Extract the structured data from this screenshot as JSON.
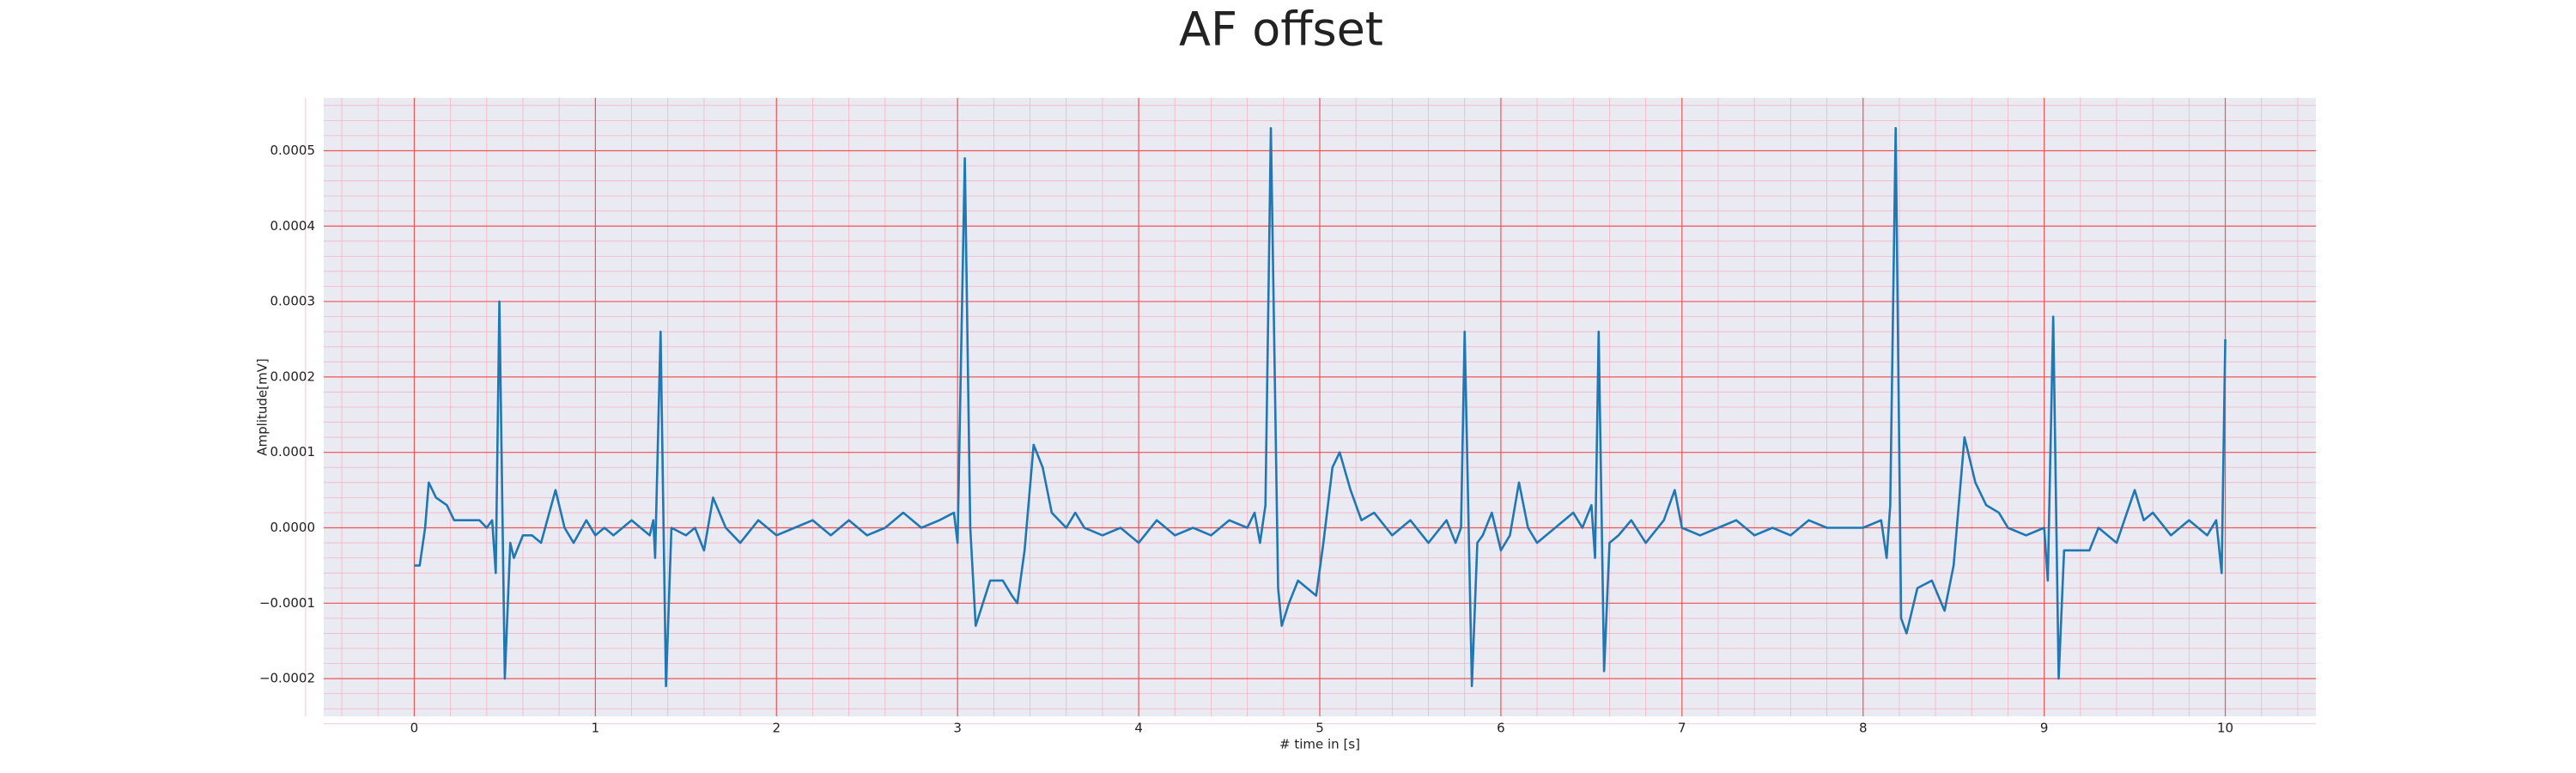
{
  "chart_data": {
    "type": "line",
    "title": "AF offset",
    "xlabel": "# time in [s]",
    "ylabel": "Amplitude[mV]",
    "color": "#1f77b4",
    "grid": true,
    "minor_grid": true,
    "xlim": [
      -0.5,
      10.5
    ],
    "ylim": [
      -0.00025,
      0.00057
    ],
    "xticks": [
      0,
      1,
      2,
      3,
      4,
      5,
      6,
      7,
      8,
      9,
      10
    ],
    "yticks": [
      {
        "value": -0.0002,
        "label": "−0.0002"
      },
      {
        "value": -0.0001,
        "label": "−0.0001"
      },
      {
        "value": 0,
        "label": "0.0000"
      },
      0.0001,
      0.0002,
      0.0003,
      0.0004,
      0.0005
    ],
    "x": [
      0,
      0.03,
      0.06,
      0.08,
      0.12,
      0.18,
      0.22,
      0.3,
      0.36,
      0.4,
      0.43,
      0.45,
      0.47,
      0.5,
      0.53,
      0.55,
      0.6,
      0.65,
      0.7,
      0.78,
      0.83,
      0.88,
      0.95,
      1.0,
      1.05,
      1.1,
      1.2,
      1.3,
      1.32,
      1.33,
      1.36,
      1.39,
      1.42,
      1.5,
      1.55,
      1.6,
      1.65,
      1.72,
      1.8,
      1.9,
      2.0,
      2.1,
      2.2,
      2.3,
      2.4,
      2.5,
      2.6,
      2.7,
      2.8,
      2.9,
      2.98,
      3.0,
      3.04,
      3.07,
      3.1,
      3.14,
      3.18,
      3.25,
      3.3,
      3.33,
      3.37,
      3.42,
      3.47,
      3.52,
      3.6,
      3.65,
      3.7,
      3.8,
      3.9,
      4.0,
      4.1,
      4.2,
      4.3,
      4.4,
      4.5,
      4.6,
      4.64,
      4.67,
      4.7,
      4.73,
      4.77,
      4.79,
      4.83,
      4.88,
      4.93,
      4.98,
      5.02,
      5.07,
      5.11,
      5.17,
      5.23,
      5.3,
      5.4,
      5.5,
      5.6,
      5.7,
      5.75,
      5.78,
      5.8,
      5.84,
      5.87,
      5.9,
      5.95,
      6.0,
      6.05,
      6.1,
      6.15,
      6.2,
      6.3,
      6.4,
      6.45,
      6.5,
      6.52,
      6.54,
      6.57,
      6.6,
      6.65,
      6.72,
      6.8,
      6.9,
      6.96,
      7.0,
      7.1,
      7.2,
      7.3,
      7.4,
      7.5,
      7.6,
      7.7,
      7.8,
      7.9,
      8.0,
      8.1,
      8.13,
      8.15,
      8.18,
      8.21,
      8.24,
      8.3,
      8.38,
      8.45,
      8.5,
      8.56,
      8.62,
      8.68,
      8.75,
      8.8,
      8.9,
      9.0,
      9.02,
      9.05,
      9.08,
      9.11,
      9.15,
      9.25,
      9.3,
      9.4,
      9.5,
      9.55,
      9.6,
      9.7,
      9.8,
      9.9,
      9.95,
      9.98,
      10.0
    ],
    "values": [
      -5e-05,
      -5e-05,
      0,
      6e-05,
      4e-05,
      3e-05,
      1e-05,
      1e-05,
      1e-05,
      0,
      1e-05,
      -6e-05,
      0.0003,
      -0.0002,
      -2e-05,
      -4e-05,
      -1e-05,
      -1e-05,
      -2e-05,
      5e-05,
      0,
      -2e-05,
      1e-05,
      -1e-05,
      0,
      -1e-05,
      1e-05,
      -1e-05,
      1e-05,
      -4e-05,
      0.00026,
      -0.00021,
      0,
      -1e-05,
      0,
      -3e-05,
      4e-05,
      0,
      -2e-05,
      1e-05,
      -1e-05,
      0,
      1e-05,
      -1e-05,
      1e-05,
      -1e-05,
      0,
      2e-05,
      0,
      1e-05,
      2e-05,
      -2e-05,
      0.00049,
      0,
      -0.00013,
      -0.0001,
      -7e-05,
      -7e-05,
      -9e-05,
      -0.0001,
      -3e-05,
      0.00011,
      8e-05,
      2e-05,
      0,
      2e-05,
      0,
      -1e-05,
      0,
      -2e-05,
      1e-05,
      -1e-05,
      0,
      -1e-05,
      1e-05,
      0,
      2e-05,
      -2e-05,
      3e-05,
      0.00053,
      -8e-05,
      -0.00013,
      -0.0001,
      -7e-05,
      -8e-05,
      -9e-05,
      -2e-05,
      8e-05,
      0.0001,
      5e-05,
      1e-05,
      2e-05,
      -1e-05,
      1e-05,
      -2e-05,
      1e-05,
      -2e-05,
      0,
      0.00026,
      -0.00021,
      -2e-05,
      -1e-05,
      2e-05,
      -3e-05,
      -1e-05,
      6e-05,
      0,
      -2e-05,
      0,
      2e-05,
      0,
      3e-05,
      -4e-05,
      0.00026,
      -0.00019,
      -2e-05,
      -1e-05,
      1e-05,
      -2e-05,
      1e-05,
      5e-05,
      0,
      -1e-05,
      0,
      1e-05,
      -1e-05,
      0,
      -1e-05,
      1e-05,
      0,
      0,
      0,
      1e-05,
      -4e-05,
      3e-05,
      0.00053,
      -0.00012,
      -0.00014,
      -8e-05,
      -7e-05,
      -0.00011,
      -5e-05,
      0.00012,
      6e-05,
      3e-05,
      2e-05,
      0,
      -1e-05,
      0,
      -7e-05,
      0.00028,
      -0.0002,
      -3e-05,
      -3e-05,
      -3e-05,
      0,
      -2e-05,
      5e-05,
      1e-05,
      2e-05,
      -1e-05,
      1e-05,
      -1e-05,
      1e-05,
      -6e-05,
      0.00025
    ]
  }
}
